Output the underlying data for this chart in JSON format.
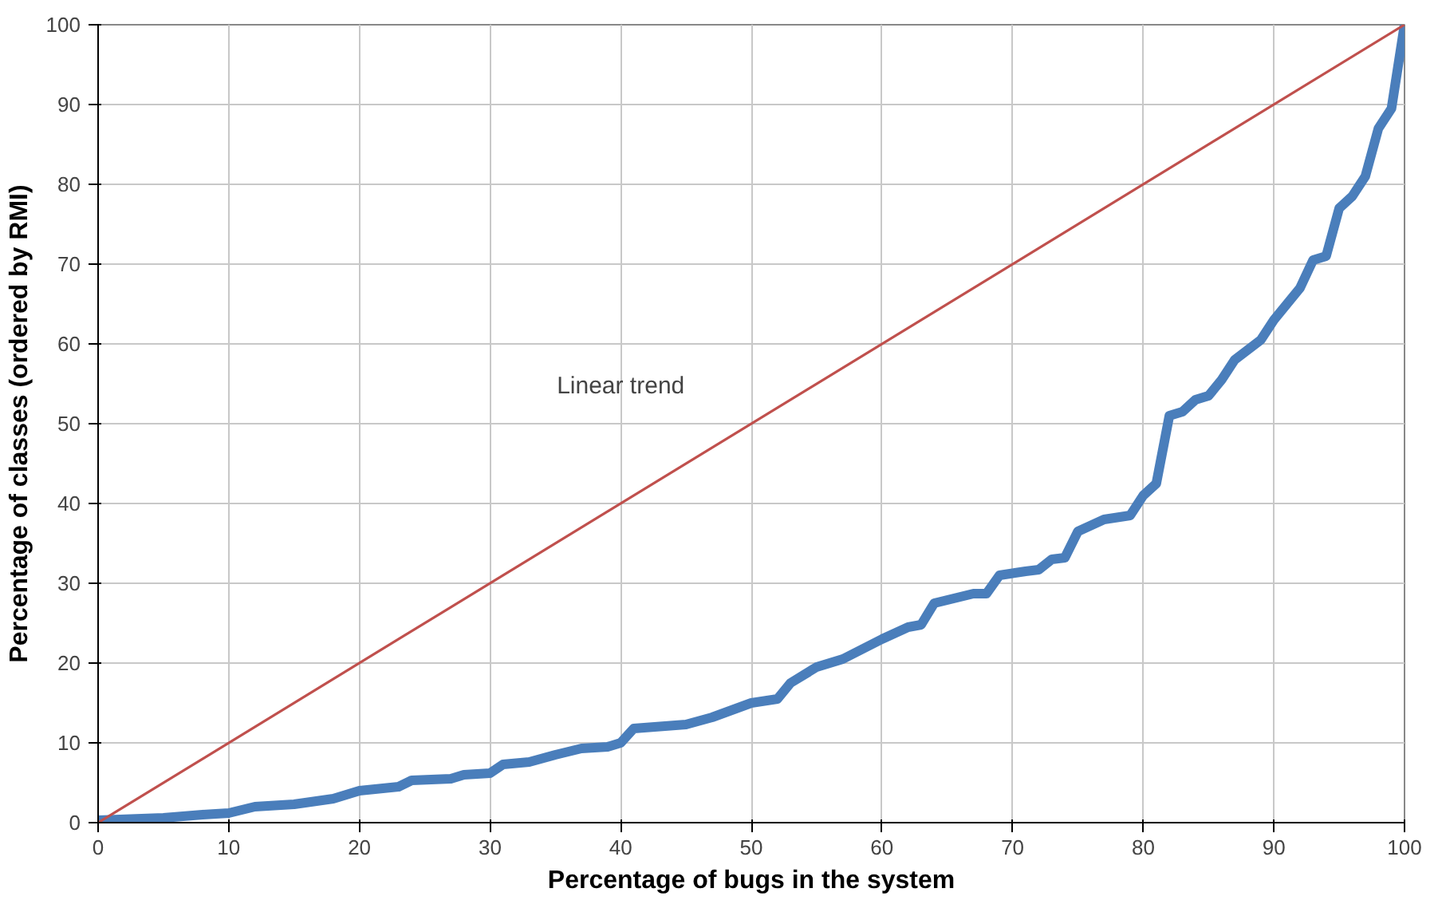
{
  "chart_data": {
    "type": "line",
    "xlabel": "Percentage of bugs in the system",
    "ylabel": "Percentage of classes (ordered by RMI)",
    "xlim": [
      0,
      100
    ],
    "ylim": [
      0,
      100
    ],
    "xticks": [
      0,
      10,
      20,
      30,
      40,
      50,
      60,
      70,
      80,
      90,
      100
    ],
    "yticks": [
      0,
      10,
      20,
      30,
      40,
      50,
      60,
      70,
      80,
      90,
      100
    ],
    "grid": true,
    "marker": "none",
    "line_style": "solid",
    "series": [
      {
        "color": "#4a7ebb",
        "x": [
          0,
          5,
          8,
          10,
          12,
          15,
          18,
          20,
          23,
          24,
          27,
          28,
          30,
          31,
          33,
          35,
          37,
          39,
          40,
          41,
          45,
          47,
          50,
          52,
          53,
          55,
          57,
          60,
          62,
          63,
          64,
          67,
          68,
          69,
          71,
          72,
          73,
          74,
          75,
          77,
          79,
          80,
          81,
          82,
          83,
          84,
          85,
          86,
          87,
          89,
          90,
          92,
          93,
          94,
          95,
          96,
          97,
          98,
          99,
          100
        ],
        "values": [
          0.3,
          0.6,
          1,
          1.2,
          2,
          2.3,
          3,
          4,
          4.5,
          5.3,
          5.5,
          6,
          6.2,
          7.3,
          7.6,
          8.5,
          9.3,
          9.5,
          10,
          11.8,
          12.3,
          13.2,
          15,
          15.5,
          17.5,
          19.5,
          20.5,
          23,
          24.5,
          24.8,
          27.5,
          28.7,
          28.7,
          31,
          31.5,
          31.7,
          33,
          33.2,
          36.5,
          38,
          38.5,
          41,
          42.5,
          51,
          51.5,
          53,
          53.5,
          55.5,
          58,
          60.5,
          63,
          67,
          70.5,
          71,
          77,
          78.5,
          81,
          87,
          89.5,
          100
        ]
      },
      {
        "color": "#c0504d",
        "x": [
          0,
          100
        ],
        "values": [
          0,
          100
        ]
      }
    ],
    "annotations": [
      "Linear trend"
    ]
  }
}
